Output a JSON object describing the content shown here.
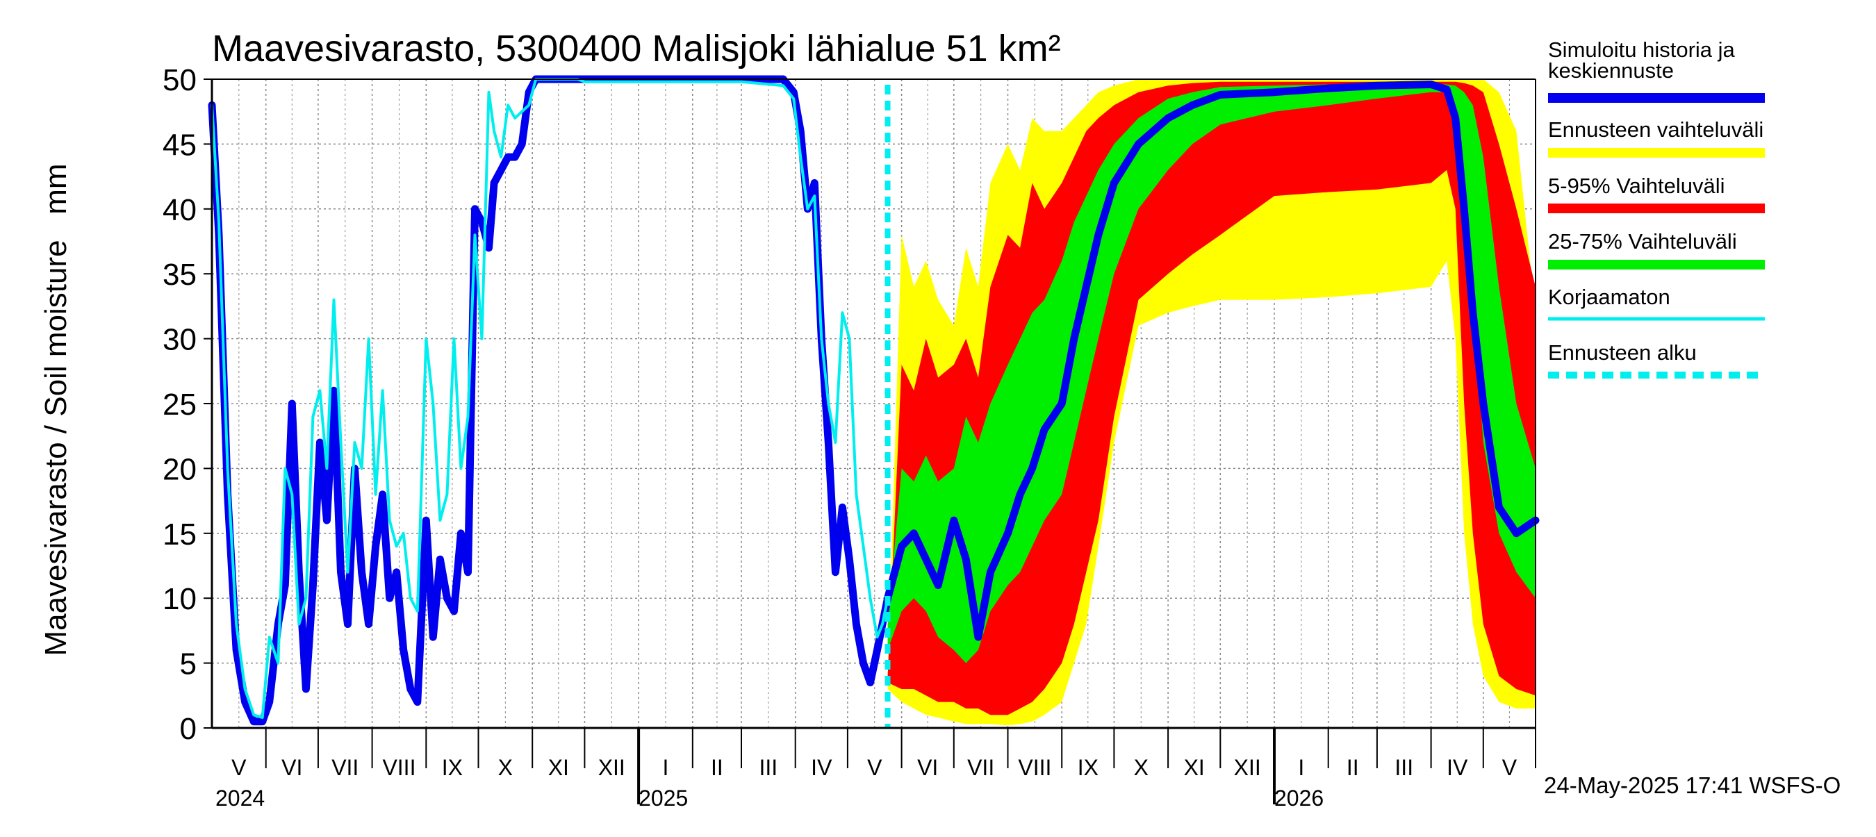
{
  "chart_data": {
    "type": "area",
    "title": "Maavesivarasto, 5300400 Malisjoki lähialue 51 km²",
    "ylabel": "Maavesivarasto / Soil moisture   mm",
    "ylim": [
      0,
      50
    ],
    "yticks": [
      0,
      5,
      10,
      15,
      20,
      25,
      30,
      35,
      40,
      45,
      50
    ],
    "grid": true,
    "legend_position": "right",
    "footer": "24-May-2025 17:41 WSFS-O",
    "x_start": "2024-05-01",
    "x_end": "2026-05-31",
    "forecast_start": "2025-05-24",
    "months": [
      {
        "label": "V",
        "start": "2024-05-01"
      },
      {
        "label": "VI",
        "start": "2024-06-01"
      },
      {
        "label": "VII",
        "start": "2024-07-01"
      },
      {
        "label": "VIII",
        "start": "2024-08-01"
      },
      {
        "label": "IX",
        "start": "2024-09-01"
      },
      {
        "label": "X",
        "start": "2024-10-01"
      },
      {
        "label": "XI",
        "start": "2024-11-01"
      },
      {
        "label": "XII",
        "start": "2024-12-01"
      },
      {
        "label": "I",
        "start": "2025-01-01"
      },
      {
        "label": "II",
        "start": "2025-02-01"
      },
      {
        "label": "III",
        "start": "2025-03-01"
      },
      {
        "label": "IV",
        "start": "2025-04-01"
      },
      {
        "label": "V",
        "start": "2025-05-01"
      },
      {
        "label": "VI",
        "start": "2025-06-01"
      },
      {
        "label": "VII",
        "start": "2025-07-01"
      },
      {
        "label": "VIII",
        "start": "2025-08-01"
      },
      {
        "label": "IX",
        "start": "2025-09-01"
      },
      {
        "label": "X",
        "start": "2025-10-01"
      },
      {
        "label": "XI",
        "start": "2025-11-01"
      },
      {
        "label": "XII",
        "start": "2025-12-01"
      },
      {
        "label": "I",
        "start": "2026-01-01"
      },
      {
        "label": "II",
        "start": "2026-02-01"
      },
      {
        "label": "III",
        "start": "2026-03-01"
      },
      {
        "label": "IV",
        "start": "2026-04-01"
      },
      {
        "label": "V",
        "start": "2026-05-01"
      }
    ],
    "years": [
      {
        "label": "2024",
        "date": "2024-05-01"
      },
      {
        "label": "2025",
        "date": "2025-01-01"
      },
      {
        "label": "2026",
        "date": "2026-01-01"
      }
    ],
    "legend": [
      {
        "key": "sim",
        "label": "Simuloitu historia ja keskiennuste",
        "color": "#0000ee",
        "style": "line"
      },
      {
        "key": "range",
        "label": "Ennusteen vaihteluväli",
        "color": "#ffff00",
        "style": "band"
      },
      {
        "key": "p5_95",
        "label": "5-95% Vaihteluväli",
        "color": "#ff0000",
        "style": "band"
      },
      {
        "key": "p25_75",
        "label": "25-75% Vaihteluväli",
        "color": "#00ee00",
        "style": "band"
      },
      {
        "key": "raw",
        "label": "Korjaamaton",
        "color": "#00eeee",
        "style": "line"
      },
      {
        "key": "fstart",
        "label": "Ennusteen alku",
        "color": "#00eeee",
        "style": "dashed"
      }
    ],
    "colors": {
      "sim": "#0000ee",
      "raw": "#00eeee",
      "range": "#ffff00",
      "p5_95": "#ff0000",
      "p25_75": "#00ee00",
      "grid": "#888888"
    },
    "series": [
      {
        "key": "sim",
        "x": [
          "2024-05-01",
          "2024-05-05",
          "2024-05-10",
          "2024-05-15",
          "2024-05-20",
          "2024-05-25",
          "2024-05-30",
          "2024-06-03",
          "2024-06-08",
          "2024-06-12",
          "2024-06-16",
          "2024-06-20",
          "2024-06-24",
          "2024-06-28",
          "2024-07-02",
          "2024-07-06",
          "2024-07-10",
          "2024-07-14",
          "2024-07-18",
          "2024-07-22",
          "2024-07-26",
          "2024-07-30",
          "2024-08-03",
          "2024-08-07",
          "2024-08-11",
          "2024-08-15",
          "2024-08-19",
          "2024-08-23",
          "2024-08-27",
          "2024-09-01",
          "2024-09-05",
          "2024-09-09",
          "2024-09-13",
          "2024-09-17",
          "2024-09-21",
          "2024-09-25",
          "2024-09-29",
          "2024-10-03",
          "2024-10-07",
          "2024-10-10",
          "2024-10-14",
          "2024-10-18",
          "2024-10-22",
          "2024-10-26",
          "2024-10-30",
          "2024-11-03",
          "2024-11-07",
          "2024-11-11",
          "2024-11-15",
          "2024-11-19",
          "2024-11-23",
          "2024-11-27",
          "2024-12-01",
          "2025-01-01",
          "2025-02-01",
          "2025-03-01",
          "2025-03-25",
          "2025-03-31",
          "2025-04-04",
          "2025-04-08",
          "2025-04-12",
          "2025-04-16",
          "2025-04-20",
          "2025-04-24",
          "2025-04-28",
          "2025-05-02",
          "2025-05-06",
          "2025-05-10",
          "2025-05-14",
          "2025-05-18",
          "2025-05-21",
          "2025-05-24",
          "2025-06-01",
          "2025-06-08",
          "2025-06-15",
          "2025-06-22",
          "2025-07-01",
          "2025-07-08",
          "2025-07-15",
          "2025-07-22",
          "2025-08-01",
          "2025-08-08",
          "2025-08-15",
          "2025-08-22",
          "2025-09-01",
          "2025-09-08",
          "2025-09-15",
          "2025-09-22",
          "2025-10-01",
          "2025-10-15",
          "2025-11-01",
          "2025-11-15",
          "2025-12-01",
          "2026-01-01",
          "2026-02-01",
          "2026-03-01",
          "2026-04-01",
          "2026-04-10",
          "2026-04-15",
          "2026-04-20",
          "2026-04-25",
          "2026-05-01",
          "2026-05-10",
          "2026-05-20",
          "2026-05-31"
        ],
        "y": [
          48,
          38,
          18,
          6,
          2,
          0.5,
          0.5,
          2,
          8,
          11,
          25,
          12,
          3,
          11,
          22,
          16,
          26,
          12,
          8,
          20,
          12,
          8,
          14,
          18,
          10,
          12,
          6,
          3,
          2,
          16,
          7,
          13,
          10,
          9,
          15,
          12,
          40,
          39,
          37,
          42,
          43,
          44,
          44,
          45,
          49,
          50,
          50,
          50,
          50,
          50,
          50,
          50,
          50,
          50,
          50,
          50,
          50,
          49,
          46,
          40,
          42,
          30,
          22,
          12,
          17,
          13,
          8,
          5,
          3.5,
          6,
          8,
          10,
          14,
          15,
          13,
          11,
          16,
          13,
          7,
          12,
          15,
          18,
          20,
          23,
          25,
          30,
          34,
          38,
          42,
          45,
          47,
          48,
          48.8,
          49,
          49.3,
          49.5,
          49.6,
          49.2,
          47,
          40,
          32,
          25,
          17,
          15,
          16
        ]
      },
      {
        "key": "raw",
        "x": [
          "2024-05-01",
          "2024-05-05",
          "2024-05-10",
          "2024-05-15",
          "2024-05-20",
          "2024-05-25",
          "2024-05-30",
          "2024-06-03",
          "2024-06-08",
          "2024-06-12",
          "2024-06-16",
          "2024-06-20",
          "2024-06-24",
          "2024-06-28",
          "2024-07-02",
          "2024-07-06",
          "2024-07-10",
          "2024-07-14",
          "2024-07-18",
          "2024-07-22",
          "2024-07-26",
          "2024-07-30",
          "2024-08-03",
          "2024-08-07",
          "2024-08-11",
          "2024-08-15",
          "2024-08-19",
          "2024-08-23",
          "2024-08-27",
          "2024-09-01",
          "2024-09-05",
          "2024-09-09",
          "2024-09-13",
          "2024-09-17",
          "2024-09-21",
          "2024-09-25",
          "2024-09-29",
          "2024-10-03",
          "2024-10-07",
          "2024-10-10",
          "2024-10-14",
          "2024-10-18",
          "2024-10-22",
          "2024-10-26",
          "2024-10-30",
          "2024-11-03",
          "2024-11-07",
          "2024-11-11",
          "2024-11-15",
          "2024-11-19",
          "2024-11-23",
          "2024-11-27",
          "2024-12-01",
          "2025-01-01",
          "2025-02-01",
          "2025-03-01",
          "2025-03-25",
          "2025-03-31",
          "2025-04-04",
          "2025-04-08",
          "2025-04-12",
          "2025-04-16",
          "2025-04-20",
          "2025-04-24",
          "2025-04-28",
          "2025-05-02",
          "2025-05-06",
          "2025-05-10",
          "2025-05-14",
          "2025-05-18",
          "2025-05-21",
          "2025-05-24"
        ],
        "y": [
          48,
          39,
          20,
          8,
          3,
          1,
          0.8,
          7,
          5,
          20,
          18,
          8,
          10,
          24,
          26,
          20,
          33,
          22,
          12,
          22,
          20,
          30,
          18,
          26,
          16,
          14,
          15,
          10,
          9,
          30,
          25,
          16,
          18,
          30,
          20,
          24,
          38,
          30,
          49,
          46,
          44,
          48,
          47,
          47.5,
          48,
          50,
          50,
          50,
          50,
          50,
          50,
          50,
          49.8,
          49.8,
          49.8,
          49.8,
          49.5,
          48.5,
          44,
          40,
          41,
          30,
          25,
          22,
          32,
          30,
          18,
          14,
          10,
          7,
          8,
          10
        ]
      }
    ],
    "bands": [
      {
        "key": "range",
        "x": [
          "2025-05-24",
          "2025-06-01",
          "2025-06-08",
          "2025-06-15",
          "2025-06-22",
          "2025-07-01",
          "2025-07-08",
          "2025-07-15",
          "2025-07-22",
          "2025-08-01",
          "2025-08-08",
          "2025-08-15",
          "2025-08-22",
          "2025-09-01",
          "2025-09-08",
          "2025-09-15",
          "2025-09-22",
          "2025-10-01",
          "2025-10-15",
          "2025-11-01",
          "2025-11-15",
          "2025-12-01",
          "2026-01-01",
          "2026-02-01",
          "2026-03-01",
          "2026-04-01",
          "2026-04-10",
          "2026-04-15",
          "2026-04-20",
          "2026-04-25",
          "2026-05-01",
          "2026-05-10",
          "2026-05-20",
          "2026-05-31"
        ],
        "low": [
          3,
          2,
          1.5,
          1,
          0.8,
          0.5,
          0.3,
          0.3,
          0.3,
          0.2,
          0.3,
          0.5,
          1,
          2,
          5,
          8,
          14,
          22,
          31,
          32,
          32.5,
          33,
          33,
          33.2,
          33.5,
          34,
          36,
          30,
          15,
          8,
          4,
          2,
          1.5,
          1.5
        ],
        "high": [
          4,
          38,
          34,
          36,
          33,
          31,
          37,
          34,
          42,
          45,
          43,
          47,
          46,
          46,
          47,
          48,
          49,
          49.5,
          50,
          50,
          50,
          50,
          50,
          50,
          50,
          50,
          50,
          50,
          50,
          50,
          50,
          49,
          46,
          32
        ]
      },
      {
        "key": "p5_95",
        "x": [
          "2025-05-24",
          "2025-06-01",
          "2025-06-08",
          "2025-06-15",
          "2025-06-22",
          "2025-07-01",
          "2025-07-08",
          "2025-07-15",
          "2025-07-22",
          "2025-08-01",
          "2025-08-08",
          "2025-08-15",
          "2025-08-22",
          "2025-09-01",
          "2025-09-08",
          "2025-09-15",
          "2025-09-22",
          "2025-10-01",
          "2025-10-15",
          "2025-11-01",
          "2025-11-15",
          "2025-12-01",
          "2026-01-01",
          "2026-02-01",
          "2026-03-01",
          "2026-04-01",
          "2026-04-10",
          "2026-04-15",
          "2026-04-20",
          "2026-04-25",
          "2026-05-01",
          "2026-05-10",
          "2026-05-20",
          "2026-05-31"
        ],
        "low": [
          3.5,
          3,
          3,
          2.5,
          2,
          2,
          1.5,
          1.5,
          1,
          1,
          1.5,
          2,
          3,
          5,
          8,
          12,
          16,
          24,
          33,
          35,
          36.5,
          38,
          41,
          41.3,
          41.5,
          42,
          43,
          40,
          25,
          15,
          8,
          4,
          3,
          2.5
        ],
        "high": [
          4,
          28,
          26,
          30,
          27,
          28,
          30,
          27,
          34,
          38,
          37,
          42,
          40,
          42,
          44,
          46,
          47,
          48,
          49,
          49.5,
          49.7,
          49.8,
          49.8,
          49.8,
          49.8,
          49.8,
          49.8,
          49.8,
          49.7,
          49.5,
          49,
          45,
          40,
          34
        ]
      },
      {
        "key": "p25_75",
        "x": [
          "2025-05-24",
          "2025-06-01",
          "2025-06-08",
          "2025-06-15",
          "2025-06-22",
          "2025-07-01",
          "2025-07-08",
          "2025-07-15",
          "2025-07-22",
          "2025-08-01",
          "2025-08-08",
          "2025-08-15",
          "2025-08-22",
          "2025-09-01",
          "2025-09-08",
          "2025-09-15",
          "2025-09-22",
          "2025-10-01",
          "2025-10-15",
          "2025-11-01",
          "2025-11-15",
          "2025-12-01",
          "2026-01-01",
          "2026-02-01",
          "2026-03-01",
          "2026-04-01",
          "2026-04-10",
          "2026-04-15",
          "2026-04-20",
          "2026-04-25",
          "2026-05-01",
          "2026-05-10",
          "2026-05-20",
          "2026-05-31"
        ],
        "low": [
          6,
          9,
          10,
          9,
          7,
          6,
          5,
          6,
          9,
          11,
          12,
          14,
          16,
          18,
          22,
          26,
          30,
          35,
          40,
          43,
          45,
          46.5,
          47.5,
          48,
          48.5,
          49,
          49,
          47.5,
          42,
          33,
          22,
          15,
          12,
          10
        ],
        "high": [
          8,
          20,
          19,
          21,
          19,
          20,
          24,
          22,
          25,
          28,
          30,
          32,
          33,
          36,
          39,
          41,
          43,
          45,
          47,
          48.5,
          49,
          49.4,
          49.5,
          49.6,
          49.6,
          49.6,
          49.6,
          49.5,
          49,
          48,
          44,
          34,
          25,
          20
        ]
      }
    ]
  }
}
